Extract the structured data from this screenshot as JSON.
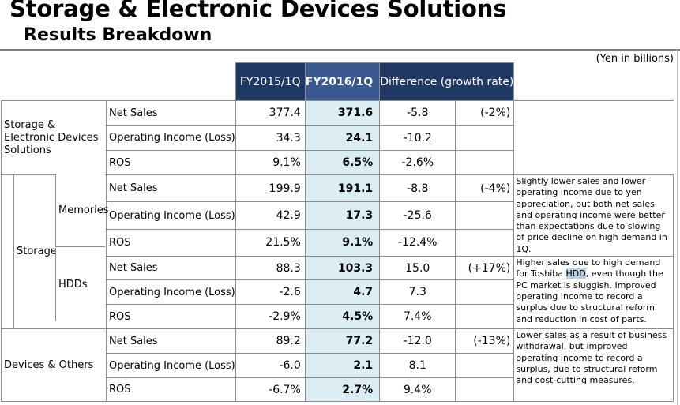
{
  "title": "Storage & Electronic Devices Solutions",
  "subtitle": "Results Breakdown",
  "unit_note": "(Yen in billions)",
  "columns": {
    "prev": "FY2015/1Q",
    "curr": "FY2016/1Q",
    "diff": "Difference (growth rate)"
  },
  "sections": {
    "sed": {
      "name": "Storage & Electronic Devices Solutions",
      "rows": [
        {
          "label": "Net Sales",
          "prev": "377.4",
          "curr": "371.6",
          "diff": "-5.8",
          "rate": "(-2%)"
        },
        {
          "label": "Operating Income (Loss)",
          "prev": "34.3",
          "curr": "24.1",
          "diff": "-10.2",
          "rate": ""
        },
        {
          "label": "ROS",
          "prev": "9.1%",
          "curr": "6.5%",
          "diff": "-2.6%",
          "rate": ""
        }
      ]
    },
    "storage": {
      "name": "Storage",
      "memories": {
        "name": "Memories",
        "rows": [
          {
            "label": "Net Sales",
            "prev": "199.9",
            "curr": "191.1",
            "diff": "-8.8",
            "rate": "(-4%)"
          },
          {
            "label": "Operating Income (Loss)",
            "prev": "42.9",
            "curr": "17.3",
            "diff": "-25.6",
            "rate": ""
          },
          {
            "label": "ROS",
            "prev": "21.5%",
            "curr": "9.1%",
            "diff": "-12.4%",
            "rate": ""
          }
        ],
        "comment": "Slightly lower sales and lower operating income due to yen appreciation, but both net sales and operating income were better than expectations due to slowing of price decline on high demand in 1Q."
      },
      "hdds": {
        "name": "HDDs",
        "rows": [
          {
            "label": "Net Sales",
            "prev": "88.3",
            "curr": "103.3",
            "diff": "15.0",
            "rate": "(+17%)"
          },
          {
            "label": "Operating Income (Loss)",
            "prev": "-2.6",
            "curr": "4.7",
            "diff": "7.3",
            "rate": ""
          },
          {
            "label": "ROS",
            "prev": "-2.9%",
            "curr": "4.5%",
            "diff": "7.4%",
            "rate": ""
          }
        ],
        "comment_before": "Higher sales due to high demand for Toshiba ",
        "comment_highlight": "HDD",
        "comment_after": ", even though the PC market is sluggish. Improved operating income to record a surplus due to structural reform and reduction in cost of parts."
      }
    },
    "devices": {
      "name": "Devices & Others",
      "rows": [
        {
          "label": "Net Sales",
          "prev": "89.2",
          "curr": "77.2",
          "diff": "-12.0",
          "rate": "(-13%)"
        },
        {
          "label": "Operating Income (Loss)",
          "prev": "-6.0",
          "curr": "2.1",
          "diff": "8.1",
          "rate": ""
        },
        {
          "label": "ROS",
          "prev": "-6.7%",
          "curr": "2.7%",
          "diff": "9.4%",
          "rate": ""
        }
      ],
      "comment": "Lower sales as a result of business withdrawal, but improved operating income to record a surplus, due to structural reform and cost-cutting measures."
    }
  }
}
